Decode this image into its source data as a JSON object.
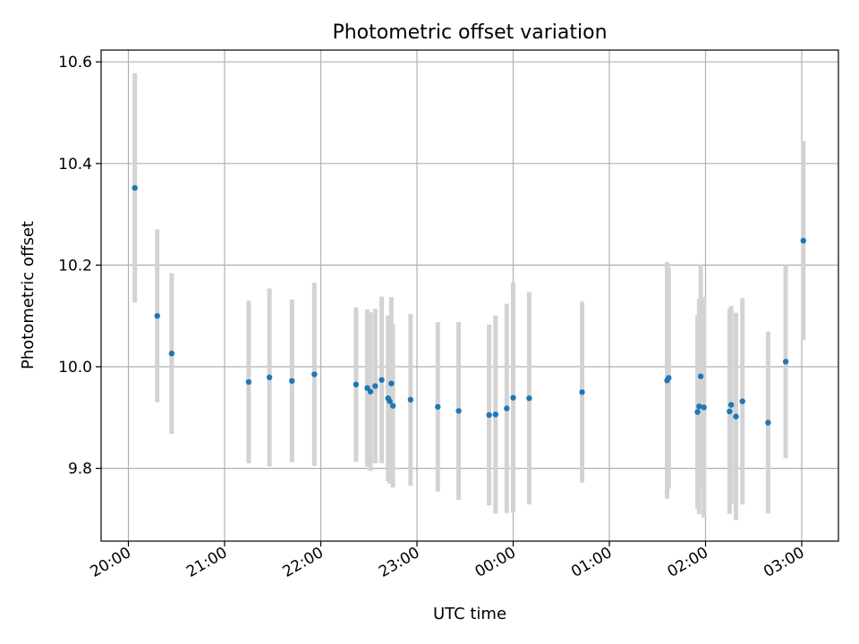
{
  "chart_data": {
    "type": "scatter",
    "title": "Photometric offset variation",
    "xlabel": "UTC time",
    "ylabel": "Photometric offset",
    "xaxis_kind": "time",
    "x_ticks": [
      "20:00",
      "21:00",
      "22:00",
      "23:00",
      "00:00",
      "01:00",
      "02:00",
      "03:00"
    ],
    "y_ticks": [
      "9.8",
      "10.0",
      "10.2",
      "10.4",
      "10.6"
    ],
    "grid": true,
    "colors": {
      "marker": "#1f77b4",
      "errorbar": "#d3d3d3",
      "grid": "#b0b0b0"
    },
    "points": [
      {
        "x": "20:04",
        "y": 10.352,
        "ylo": 10.126,
        "yhi": 10.578
      },
      {
        "x": "20:18",
        "y": 10.1,
        "ylo": 9.93,
        "yhi": 10.27
      },
      {
        "x": "20:27",
        "y": 10.026,
        "ylo": 9.868,
        "yhi": 10.184
      },
      {
        "x": "21:15",
        "y": 9.97,
        "ylo": 9.81,
        "yhi": 10.13
      },
      {
        "x": "21:28",
        "y": 9.979,
        "ylo": 9.804,
        "yhi": 10.154
      },
      {
        "x": "21:42",
        "y": 9.972,
        "ylo": 9.812,
        "yhi": 10.132
      },
      {
        "x": "21:56",
        "y": 9.985,
        "ylo": 9.805,
        "yhi": 10.165
      },
      {
        "x": "22:22",
        "y": 9.965,
        "ylo": 9.813,
        "yhi": 10.117
      },
      {
        "x": "22:29",
        "y": 9.958,
        "ylo": 9.803,
        "yhi": 10.113
      },
      {
        "x": "22:31",
        "y": 9.951,
        "ylo": 9.795,
        "yhi": 10.107
      },
      {
        "x": "22:34",
        "y": 9.962,
        "ylo": 9.81,
        "yhi": 10.114
      },
      {
        "x": "22:38",
        "y": 9.974,
        "ylo": 9.81,
        "yhi": 10.138
      },
      {
        "x": "22:42",
        "y": 9.938,
        "ylo": 9.775,
        "yhi": 10.101
      },
      {
        "x": "22:43",
        "y": 9.932,
        "ylo": 9.77,
        "yhi": 10.094
      },
      {
        "x": "22:44",
        "y": 9.967,
        "ylo": 9.797,
        "yhi": 10.137
      },
      {
        "x": "22:45",
        "y": 9.923,
        "ylo": 9.762,
        "yhi": 10.084
      },
      {
        "x": "22:56",
        "y": 9.935,
        "ylo": 9.766,
        "yhi": 10.104
      },
      {
        "x": "23:13",
        "y": 9.921,
        "ylo": 9.754,
        "yhi": 10.088
      },
      {
        "x": "23:26",
        "y": 9.913,
        "ylo": 9.738,
        "yhi": 10.088
      },
      {
        "x": "23:45",
        "y": 9.905,
        "ylo": 9.727,
        "yhi": 10.083
      },
      {
        "x": "23:49",
        "y": 9.906,
        "ylo": 9.711,
        "yhi": 10.101
      },
      {
        "x": "23:56",
        "y": 9.918,
        "ylo": 9.712,
        "yhi": 10.124
      },
      {
        "x": "00:00",
        "y": 9.939,
        "ylo": 9.713,
        "yhi": 10.165
      },
      {
        "x": "00:10",
        "y": 9.938,
        "ylo": 9.729,
        "yhi": 10.147
      },
      {
        "x": "00:43",
        "y": 9.95,
        "ylo": 9.772,
        "yhi": 10.128
      },
      {
        "x": "01:36",
        "y": 9.973,
        "ylo": 9.74,
        "yhi": 10.206
      },
      {
        "x": "01:37",
        "y": 9.978,
        "ylo": 9.76,
        "yhi": 10.196
      },
      {
        "x": "01:55",
        "y": 9.911,
        "ylo": 9.72,
        "yhi": 10.102
      },
      {
        "x": "01:56",
        "y": 9.922,
        "ylo": 9.71,
        "yhi": 10.134
      },
      {
        "x": "01:57",
        "y": 9.981,
        "ylo": 9.76,
        "yhi": 10.202
      },
      {
        "x": "01:59",
        "y": 9.92,
        "ylo": 9.703,
        "yhi": 10.137
      },
      {
        "x": "02:15",
        "y": 9.912,
        "ylo": 9.71,
        "yhi": 10.114
      },
      {
        "x": "02:16",
        "y": 9.925,
        "ylo": 9.73,
        "yhi": 10.12
      },
      {
        "x": "02:19",
        "y": 9.902,
        "ylo": 9.698,
        "yhi": 10.106
      },
      {
        "x": "02:23",
        "y": 9.932,
        "ylo": 9.729,
        "yhi": 10.135
      },
      {
        "x": "02:39",
        "y": 9.89,
        "ylo": 9.711,
        "yhi": 10.069
      },
      {
        "x": "02:50",
        "y": 10.01,
        "ylo": 9.82,
        "yhi": 10.2
      },
      {
        "x": "03:01",
        "y": 10.248,
        "ylo": 10.052,
        "yhi": 10.444
      }
    ]
  }
}
